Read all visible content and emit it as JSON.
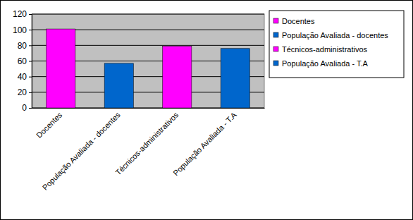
{
  "chart_data": {
    "type": "bar",
    "categories": [
      "Docentes",
      "População Avaliada - docentes",
      "Técnicos-administrativos",
      "População Avaliada - T.A"
    ],
    "series": [
      {
        "name": "Docentes",
        "color": "#ff00ff",
        "values": [
          101,
          null,
          null,
          null
        ]
      },
      {
        "name": "População Avaliada - docentes",
        "color": "#0066cc",
        "values": [
          null,
          57,
          null,
          null
        ]
      },
      {
        "name": "Técnicos-administrativos",
        "color": "#ff00ff",
        "values": [
          null,
          null,
          79,
          null
        ]
      },
      {
        "name": "População Avaliada - T.A",
        "color": "#0066cc",
        "values": [
          null,
          null,
          null,
          76
        ]
      }
    ],
    "ylim": [
      0,
      120
    ],
    "yticks": [
      0,
      20,
      40,
      60,
      80,
      100,
      120
    ],
    "grid": true,
    "legend": "right"
  }
}
